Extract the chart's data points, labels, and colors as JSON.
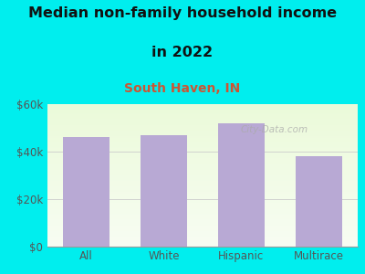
{
  "title_line1": "Median non-family household income",
  "title_line2": "in 2022",
  "subtitle": "South Haven, IN",
  "categories": [
    "All",
    "White",
    "Hispanic",
    "Multirace"
  ],
  "values": [
    46000,
    47000,
    52000,
    38000
  ],
  "bar_color": "#b8a9d4",
  "title_fontsize": 11.5,
  "subtitle_fontsize": 10,
  "subtitle_color": "#cc5533",
  "title_color": "#111111",
  "background_color": "#00eeee",
  "ylim": [
    0,
    60000
  ],
  "yticks": [
    0,
    20000,
    40000,
    60000
  ],
  "ytick_labels": [
    "$0",
    "$20k",
    "$40k",
    "$60k"
  ],
  "watermark": "City-Data.com",
  "tick_color": "#555555"
}
